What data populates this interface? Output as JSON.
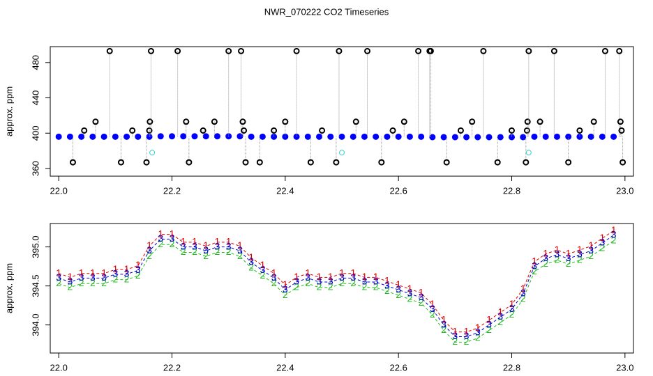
{
  "chart_data": [
    {
      "type": "scatter",
      "title": "NWR_070222  CO2 Timeseries",
      "y_label": "approx. ppm",
      "xlim": [
        21.985,
        23.015
      ],
      "ylim": [
        351.3,
        498
      ],
      "xticks": [
        {
          "value": 22,
          "label": "22.0"
        },
        {
          "value": 22.2,
          "label": "22.2"
        },
        {
          "value": 22.4,
          "label": "22.4"
        },
        {
          "value": 22.6,
          "label": "22.6"
        },
        {
          "value": 22.8,
          "label": "22.8"
        },
        {
          "value": 23,
          "label": "23.0"
        }
      ],
      "yticks": [
        360,
        400,
        440,
        480
      ],
      "series": [
        {
          "color": "#0000ff",
          "x": [
            22.0,
            22.02,
            22.04,
            22.06,
            22.08,
            22.1,
            22.12,
            22.14,
            22.16,
            22.18,
            22.2,
            22.22,
            22.24,
            22.26,
            22.28,
            22.3,
            22.32,
            22.34,
            22.36,
            22.38,
            22.4,
            22.42,
            22.44,
            22.46,
            22.48,
            22.5,
            22.52,
            22.54,
            22.56,
            22.58,
            22.6,
            22.62,
            22.64,
            22.66,
            22.68,
            22.7,
            22.72,
            22.74,
            22.76,
            22.78,
            22.8,
            22.82,
            22.84,
            22.86,
            22.88,
            22.9,
            22.92,
            22.94,
            22.96,
            22.98
          ],
          "values": [
            396,
            396,
            396,
            396,
            396,
            396,
            396,
            396,
            396,
            396.5,
            396.5,
            396.5,
            396.5,
            396.5,
            396.5,
            396.5,
            396.5,
            396,
            396,
            396,
            396,
            396,
            396,
            396,
            396,
            396,
            396,
            396,
            396,
            396,
            396,
            396,
            396,
            395.5,
            395.5,
            395.5,
            395.5,
            395.5,
            395.5,
            395.5,
            395.5,
            395.5,
            396,
            396,
            396,
            396,
            396,
            396,
            396,
            396
          ]
        },
        {
          "color": "#000000",
          "x": [
            22.025,
            22.045,
            22.065,
            22.09,
            22.11,
            22.13,
            22.155,
            22.16,
            22.161,
            22.163,
            22.21,
            22.225,
            22.23,
            22.255,
            22.275,
            22.3,
            22.322,
            22.325,
            22.327,
            22.33,
            22.355,
            22.38,
            22.4,
            22.42,
            22.445,
            22.465,
            22.49,
            22.495,
            22.525,
            22.545,
            22.57,
            22.59,
            22.61,
            22.635,
            22.655,
            22.657,
            22.685,
            22.71,
            22.73,
            22.75,
            22.775,
            22.8,
            22.825,
            22.827,
            22.828,
            22.83,
            22.85,
            22.875,
            22.9,
            22.92,
            22.945,
            22.965,
            22.99,
            22.992,
            22.994,
            22.996
          ],
          "values": [
            367,
            403,
            413,
            493,
            367,
            403,
            367,
            403,
            413,
            493,
            493,
            413,
            367,
            403,
            413,
            493,
            493,
            413,
            403,
            367,
            367,
            403,
            413,
            493,
            367,
            403,
            367,
            493,
            413,
            493,
            367,
            403,
            413,
            493,
            493,
            493,
            367,
            403,
            413,
            493,
            367,
            403,
            367,
            403,
            413,
            493,
            413,
            493,
            367,
            403,
            413,
            493,
            493,
            413,
            403,
            367
          ]
        },
        {
          "color": "#33cccc",
          "x": [
            22.165,
            22.5,
            22.83
          ],
          "values": [
            378,
            378,
            378
          ]
        }
      ]
    },
    {
      "type": "text-scatter",
      "y_label": "approx. ppm",
      "xlim": [
        21.985,
        23.015
      ],
      "ylim": [
        393.64,
        395.3
      ],
      "xticks": [
        {
          "value": 22,
          "label": "22.0"
        },
        {
          "value": 22.2,
          "label": "22.2"
        },
        {
          "value": 22.4,
          "label": "22.4"
        },
        {
          "value": 22.6,
          "label": "22.6"
        },
        {
          "value": 22.8,
          "label": "22.8"
        },
        {
          "value": 23,
          "label": "23.0"
        }
      ],
      "yticks": [
        {
          "value": 394,
          "label": "394.0"
        },
        {
          "value": 394.5,
          "label": "394.5"
        },
        {
          "value": 395,
          "label": "395.0"
        }
      ],
      "x": [
        22.0,
        22.02,
        22.04,
        22.06,
        22.08,
        22.1,
        22.12,
        22.14,
        22.16,
        22.18,
        22.2,
        22.22,
        22.24,
        22.26,
        22.28,
        22.3,
        22.32,
        22.34,
        22.36,
        22.38,
        22.4,
        22.42,
        22.44,
        22.46,
        22.48,
        22.5,
        22.52,
        22.54,
        22.56,
        22.58,
        22.6,
        22.62,
        22.64,
        22.66,
        22.68,
        22.7,
        22.72,
        22.74,
        22.76,
        22.78,
        22.8,
        22.82,
        22.84,
        22.86,
        22.88,
        22.9,
        22.92,
        22.94,
        22.96,
        22.98
      ],
      "series": [
        {
          "name": "1",
          "color": "#dd0000",
          "values": [
            394.66,
            394.61,
            394.66,
            394.66,
            394.66,
            394.71,
            394.71,
            394.76,
            395.01,
            395.16,
            395.16,
            395.06,
            395.06,
            395.01,
            395.06,
            395.06,
            395.01,
            394.86,
            394.76,
            394.66,
            394.51,
            394.61,
            394.66,
            394.61,
            394.61,
            394.66,
            394.66,
            394.61,
            394.61,
            394.56,
            394.51,
            394.46,
            394.41,
            394.26,
            394.06,
            393.91,
            393.91,
            393.96,
            394.06,
            394.16,
            394.26,
            394.46,
            394.81,
            394.91,
            394.96,
            394.91,
            394.96,
            395.01,
            395.11,
            395.21
          ]
        },
        {
          "name": "2",
          "color": "#22bb22",
          "values": [
            394.53,
            394.48,
            394.53,
            394.53,
            394.53,
            394.58,
            394.58,
            394.63,
            394.88,
            395.03,
            395.03,
            394.93,
            394.93,
            394.88,
            394.93,
            394.93,
            394.88,
            394.73,
            394.63,
            394.53,
            394.38,
            394.48,
            394.53,
            394.48,
            394.48,
            394.53,
            394.53,
            394.48,
            394.48,
            394.43,
            394.38,
            394.33,
            394.28,
            394.13,
            393.93,
            393.78,
            393.78,
            393.83,
            393.93,
            394.03,
            394.13,
            394.33,
            394.68,
            394.78,
            394.83,
            394.78,
            394.83,
            394.88,
            394.98,
            395.08
          ]
        },
        {
          "name": "3",
          "color": "#0000cc",
          "values": [
            394.6,
            394.55,
            394.6,
            394.6,
            394.6,
            394.65,
            394.65,
            394.7,
            394.95,
            395.1,
            395.1,
            395.0,
            395.0,
            394.95,
            395.0,
            395.0,
            394.95,
            394.8,
            394.7,
            394.6,
            394.45,
            394.55,
            394.6,
            394.55,
            394.55,
            394.6,
            394.6,
            394.55,
            394.55,
            394.5,
            394.45,
            394.4,
            394.35,
            394.2,
            394.0,
            393.85,
            393.85,
            393.9,
            394.0,
            394.1,
            394.2,
            394.4,
            394.75,
            394.85,
            394.9,
            394.85,
            394.9,
            394.95,
            395.05,
            395.15
          ]
        }
      ]
    }
  ]
}
